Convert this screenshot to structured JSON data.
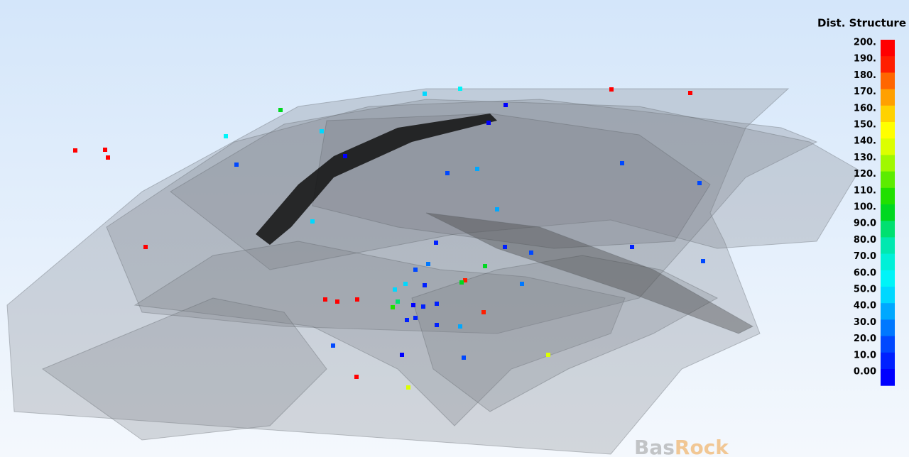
{
  "legend": {
    "title": "Dist. Structure",
    "labels": [
      "200.",
      "190.",
      "180.",
      "170.",
      "160.",
      "150.",
      "140.",
      "130.",
      "120.",
      "110.",
      "100.",
      "90.0",
      "80.0",
      "70.0",
      "60.0",
      "50.0",
      "40.0",
      "30.0",
      "20.0",
      "10.0",
      "0.00"
    ],
    "colors": [
      "#ff0000",
      "#ff1e00",
      "#ff6600",
      "#ffa000",
      "#ffd200",
      "#ffff00",
      "#dcff00",
      "#a0f800",
      "#5cec00",
      "#20e000",
      "#00d820",
      "#00e070",
      "#00e8b0",
      "#00f0d8",
      "#00f4f8",
      "#00d8ff",
      "#00a8ff",
      "#0078ff",
      "#0048ff",
      "#0020ff",
      "#0000ff"
    ]
  },
  "watermark": [
    "Bas",
    "Rock"
  ]
}
